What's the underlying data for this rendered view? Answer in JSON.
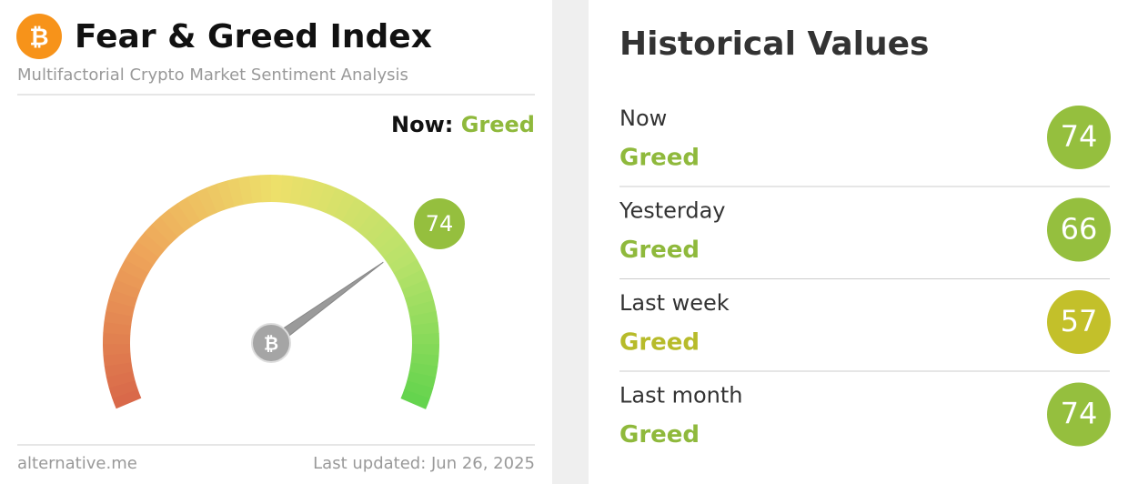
{
  "gauge_card": {
    "title": "Fear & Greed Index",
    "subtitle": "Multifactorial Crypto Market Sentiment Analysis",
    "now_label": "Now:",
    "now_value": "Greed",
    "now_color": "#8fb93c",
    "value": 74,
    "badge_color": "#95bf3e",
    "source": "alternative.me",
    "updated": "Last updated: Jun 26, 2025"
  },
  "history_card": {
    "title": "Historical Values",
    "rows": [
      {
        "label": "Now",
        "classification": "Greed",
        "value": 74,
        "color": "#95bf3e",
        "text_color": "#8fb93c"
      },
      {
        "label": "Yesterday",
        "classification": "Greed",
        "value": 66,
        "color": "#95bf3e",
        "text_color": "#8fb93c"
      },
      {
        "label": "Last week",
        "classification": "Greed",
        "value": 57,
        "color": "#c3c02a",
        "text_color": "#b7bb2a"
      },
      {
        "label": "Last month",
        "classification": "Greed",
        "value": 74,
        "color": "#95bf3e",
        "text_color": "#8fb93c"
      }
    ]
  }
}
